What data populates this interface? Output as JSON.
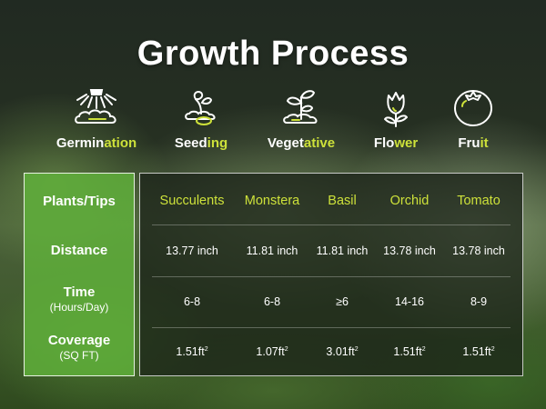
{
  "title": "Growth Process",
  "stages": [
    {
      "name": "germination-stage",
      "icon": "sprinkler-soil-icon",
      "label_white": "Germin",
      "label_green": "ation"
    },
    {
      "name": "seeding-stage",
      "icon": "seed-sprout-icon",
      "label_white": "Seed",
      "label_green": "ing"
    },
    {
      "name": "vegetative-stage",
      "icon": "leafy-sprout-icon",
      "label_white": "Veget",
      "label_green": "ative"
    },
    {
      "name": "flower-stage",
      "icon": "tulip-flower-icon",
      "label_white": "Flo",
      "label_green": "wer"
    },
    {
      "name": "fruit-stage",
      "icon": "tomato-fruit-icon",
      "label_white": "Fru",
      "label_green": "it"
    }
  ],
  "table": {
    "header_label": "Plants/Tips",
    "row_labels": [
      {
        "main": "Distance",
        "sub": ""
      },
      {
        "main": "Time",
        "sub": "(Hours/Day)"
      },
      {
        "main": "Coverage",
        "sub": "(SQ FT)"
      }
    ],
    "columns": [
      "Succulents",
      "Monstera",
      "Basil",
      "Orchid",
      "Tomato"
    ],
    "distance": [
      "13.77 inch",
      "11.81 inch",
      "11.81 inch",
      "13.78 inch",
      "13.78 inch"
    ],
    "time": [
      "6-8",
      "6-8",
      "≥6",
      "14-16",
      "8-9"
    ],
    "coverage": [
      "1.51ft",
      "1.07ft",
      "3.01ft",
      "1.51ft",
      "1.51ft"
    ],
    "coverage_exponent": "2"
  },
  "colors": {
    "accent_green": "#cde13a",
    "label_panel": "#60b23a",
    "text": "#ffffff"
  }
}
